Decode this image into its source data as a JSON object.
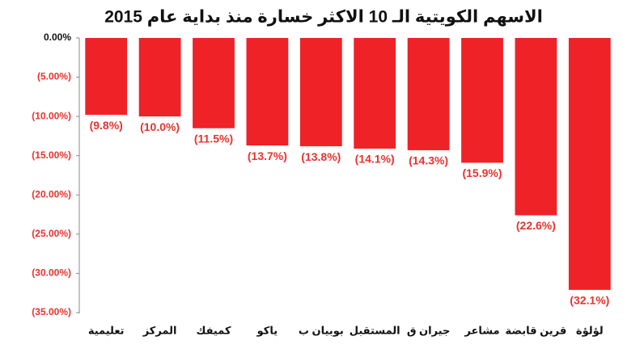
{
  "chart_data": {
    "type": "bar",
    "title": "الاسهم الكويتية الـ 10 الاكثر خسارة منذ بداية عام 2015",
    "categories": [
      "تعليمية",
      "المركز",
      "كميفك",
      "ياكو",
      "بوبيان ب",
      "المستقبل",
      "جيران ق",
      "مشاعر",
      "قرين قابضة",
      "لؤلؤة"
    ],
    "values": [
      -9.8,
      -10.0,
      -11.5,
      -13.7,
      -13.8,
      -14.1,
      -14.3,
      -15.9,
      -22.6,
      -32.1
    ],
    "value_labels": [
      "(9.8%)",
      "(10.0%)",
      "(11.5%)",
      "(13.7%)",
      "(13.8%)",
      "(14.1%)",
      "(14.3%)",
      "(15.9%)",
      "(22.6%)",
      "(32.1%)"
    ],
    "color": "#ee2227",
    "ylim": [
      -35,
      0
    ],
    "yticks": [
      {
        "value": 0,
        "label": "0.00%"
      },
      {
        "value": -5,
        "label": "(5.00%)"
      },
      {
        "value": -10,
        "label": "(10.00%)"
      },
      {
        "value": -15,
        "label": "(15.00%)"
      },
      {
        "value": -20,
        "label": "(20.00%)"
      },
      {
        "value": -25,
        "label": "(25.00%)"
      },
      {
        "value": -30,
        "label": "(30.00%)"
      },
      {
        "value": -35,
        "label": "(35.00%)"
      }
    ],
    "grid": false
  }
}
